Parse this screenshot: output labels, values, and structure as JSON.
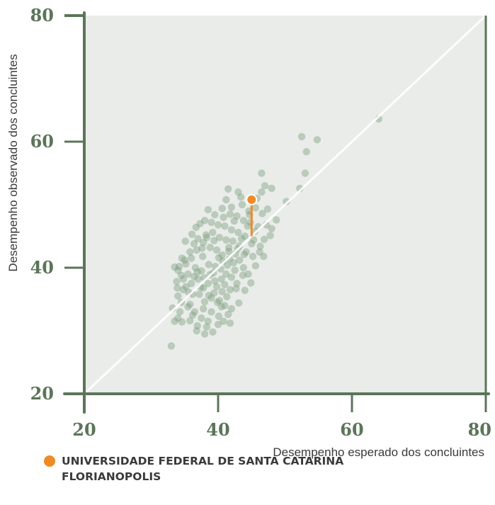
{
  "chart_data": {
    "type": "scatter",
    "title": "",
    "xlabel": "Desempenho esperado dos concluintes",
    "ylabel": "Desempenho observado dos concluintes",
    "xlim": [
      20,
      80
    ],
    "ylim": [
      20,
      80
    ],
    "xticks": [
      "20",
      "40",
      "60",
      "80"
    ],
    "yticks": [
      "20",
      "40",
      "60",
      "80"
    ],
    "reference_line": {
      "from": [
        20,
        20
      ],
      "to": [
        80,
        80
      ],
      "label": ""
    },
    "colors": {
      "plot_bg": "#e9ece9",
      "axis": "#5b7559",
      "points": "#7a9a7c",
      "highlight": "#f08a24",
      "diagonal": "#ffffff"
    },
    "series": [
      {
        "name": "",
        "points": [
          [
            33.0,
            27.6
          ],
          [
            33.5,
            31.5
          ],
          [
            34.0,
            32.0
          ],
          [
            34.3,
            33.0
          ],
          [
            34.5,
            34.5
          ],
          [
            34.0,
            35.5
          ],
          [
            34.8,
            36.5
          ],
          [
            33.8,
            37.8
          ],
          [
            34.5,
            38.8
          ],
          [
            34.0,
            39.6
          ],
          [
            35.2,
            40.6
          ],
          [
            35.0,
            41.2
          ],
          [
            34.2,
            40.2
          ],
          [
            35.5,
            39.0
          ],
          [
            36.0,
            37.5
          ],
          [
            36.2,
            35.8
          ],
          [
            35.8,
            34.2
          ],
          [
            36.5,
            33.0
          ],
          [
            36.8,
            30.0
          ],
          [
            38.0,
            29.5
          ],
          [
            37.5,
            32.0
          ],
          [
            38.5,
            31.5
          ],
          [
            39.2,
            29.8
          ],
          [
            40.0,
            31.0
          ],
          [
            40.8,
            31.5
          ],
          [
            41.5,
            32.6
          ],
          [
            42.0,
            33.5
          ],
          [
            41.0,
            34.0
          ],
          [
            40.2,
            34.8
          ],
          [
            39.0,
            35.2
          ],
          [
            38.0,
            34.6
          ],
          [
            37.2,
            35.8
          ],
          [
            37.8,
            36.8
          ],
          [
            38.5,
            37.5
          ],
          [
            39.5,
            37.9
          ],
          [
            40.5,
            38.2
          ],
          [
            41.2,
            39.0
          ],
          [
            42.0,
            38.5
          ],
          [
            42.8,
            37.5
          ],
          [
            41.8,
            36.5
          ],
          [
            40.6,
            36.2
          ],
          [
            39.4,
            36.0
          ],
          [
            38.8,
            38.9
          ],
          [
            37.5,
            39.5
          ],
          [
            36.6,
            40.0
          ],
          [
            36.0,
            41.5
          ],
          [
            35.8,
            42.5
          ],
          [
            36.8,
            42.8
          ],
          [
            37.7,
            41.8
          ],
          [
            38.6,
            40.5
          ],
          [
            39.6,
            40.2
          ],
          [
            40.4,
            39.8
          ],
          [
            41.4,
            40.4
          ],
          [
            42.3,
            40.8
          ],
          [
            43.2,
            41.2
          ],
          [
            43.8,
            40.0
          ],
          [
            44.5,
            39.0
          ],
          [
            42.6,
            42.2
          ],
          [
            41.6,
            42.6
          ],
          [
            40.6,
            42.0
          ],
          [
            39.8,
            42.8
          ],
          [
            38.8,
            43.2
          ],
          [
            37.8,
            44.0
          ],
          [
            37.0,
            44.6
          ],
          [
            36.4,
            43.8
          ],
          [
            38.2,
            45.2
          ],
          [
            39.2,
            45.6
          ],
          [
            40.2,
            44.8
          ],
          [
            41.2,
            44.4
          ],
          [
            42.2,
            44.2
          ],
          [
            43.2,
            43.5
          ],
          [
            44.2,
            42.5
          ],
          [
            45.2,
            41.8
          ],
          [
            46.2,
            42.5
          ],
          [
            46.8,
            41.8
          ],
          [
            45.0,
            43.8
          ],
          [
            44.0,
            45.0
          ],
          [
            43.0,
            45.6
          ],
          [
            42.0,
            46.0
          ],
          [
            41.0,
            46.6
          ],
          [
            40.0,
            46.8
          ],
          [
            39.0,
            47.2
          ],
          [
            38.0,
            47.5
          ],
          [
            40.8,
            48.0
          ],
          [
            41.8,
            48.5
          ],
          [
            42.8,
            48.2
          ],
          [
            43.8,
            47.5
          ],
          [
            44.8,
            47.2
          ],
          [
            46.0,
            46.5
          ],
          [
            47.2,
            46.8
          ],
          [
            48.0,
            46.2
          ],
          [
            46.6,
            48.6
          ],
          [
            45.6,
            49.5
          ],
          [
            44.6,
            49.0
          ],
          [
            43.6,
            50.0
          ],
          [
            41.2,
            50.8
          ],
          [
            41.5,
            52.5
          ],
          [
            43.0,
            52.0
          ],
          [
            46.5,
            52.0
          ],
          [
            47.0,
            53.0
          ],
          [
            46.5,
            55.0
          ],
          [
            48.0,
            52.6
          ],
          [
            53.0,
            55.0
          ],
          [
            52.2,
            52.6
          ],
          [
            53.2,
            58.4
          ],
          [
            52.5,
            60.8
          ],
          [
            54.8,
            60.3
          ],
          [
            64.0,
            63.6
          ],
          [
            50.2,
            50.5
          ],
          [
            34.6,
            31.4
          ],
          [
            35.5,
            33.8
          ],
          [
            36.9,
            30.8
          ],
          [
            39.0,
            33.0
          ],
          [
            40.5,
            33.8
          ],
          [
            41.8,
            31.2
          ],
          [
            37.0,
            38.2
          ],
          [
            39.3,
            39.2
          ],
          [
            40.7,
            41.0
          ],
          [
            42.5,
            39.6
          ],
          [
            43.7,
            38.8
          ],
          [
            35.2,
            37.0
          ],
          [
            36.4,
            38.6
          ],
          [
            37.4,
            36.9
          ],
          [
            38.6,
            35.6
          ],
          [
            39.9,
            34.5
          ],
          [
            41.3,
            35.4
          ],
          [
            42.7,
            36.7
          ],
          [
            43.1,
            34.4
          ],
          [
            44.0,
            36.4
          ],
          [
            44.9,
            37.6
          ],
          [
            45.6,
            40.3
          ],
          [
            46.9,
            44.5
          ],
          [
            45.5,
            45.8
          ],
          [
            44.4,
            46.6
          ],
          [
            42.4,
            47.4
          ],
          [
            39.5,
            48.4
          ],
          [
            38.5,
            49.2
          ],
          [
            42.0,
            49.6
          ],
          [
            43.4,
            51.2
          ],
          [
            45.8,
            51.0
          ],
          [
            47.4,
            49.3
          ],
          [
            48.7,
            47.6
          ],
          [
            36.7,
            46.4
          ],
          [
            37.3,
            47.0
          ],
          [
            35.1,
            44.2
          ],
          [
            34.6,
            41.5
          ],
          [
            33.5,
            40.1
          ],
          [
            33.9,
            36.8
          ],
          [
            33.2,
            33.6
          ],
          [
            35.8,
            31.6
          ],
          [
            38.3,
            30.6
          ],
          [
            40.1,
            32.3
          ],
          [
            41.0,
            37.3
          ],
          [
            39.8,
            37.0
          ],
          [
            37.9,
            38.4
          ],
          [
            36.9,
            39.3
          ],
          [
            40.1,
            41.6
          ],
          [
            41.6,
            43.2
          ],
          [
            39.4,
            44.3
          ],
          [
            38.3,
            44.8
          ],
          [
            36.1,
            45.3
          ],
          [
            43.5,
            44.6
          ],
          [
            45.3,
            44.4
          ],
          [
            47.8,
            45.1
          ],
          [
            44.7,
            48.4
          ],
          [
            40.6,
            49.4
          ],
          [
            37.6,
            43.1
          ],
          [
            34.8,
            38.2
          ],
          [
            35.6,
            36.1
          ],
          [
            43.9,
            42.1
          ],
          [
            42.9,
            43.0
          ],
          [
            46.3,
            43.4
          ],
          [
            41.7,
            41.4
          ],
          [
            36.2,
            32.5
          ],
          [
            37.8,
            33.5
          ]
        ]
      }
    ],
    "highlight": {
      "name": "UNIVERSIDADE FEDERAL DE SANTA CATARINA FLORIANOPOLIS",
      "expected": 45.0,
      "observed": 50.8
    }
  },
  "legend": {
    "line1": "UNIVERSIDADE FEDERAL DE SANTA CATARINA",
    "line2": "FLORIANOPOLIS"
  }
}
